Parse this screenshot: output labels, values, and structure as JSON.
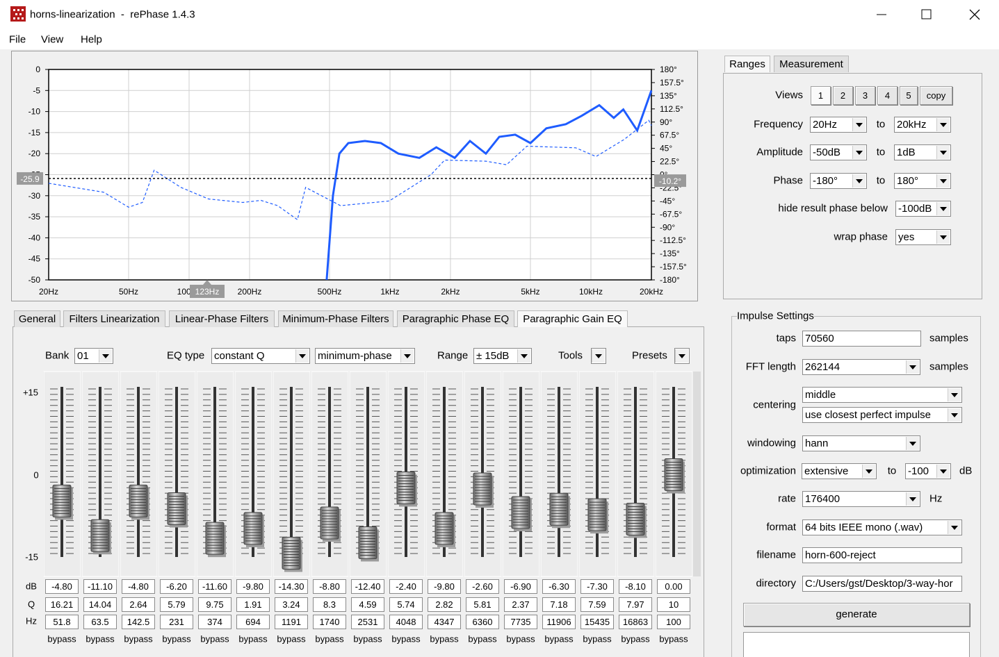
{
  "window": {
    "title": "horns-linearization  -  rePhase 1.4.3"
  },
  "menu": [
    "File",
    "View",
    "Help"
  ],
  "plot": {
    "xscale": "log",
    "xlim": [
      20,
      20000
    ],
    "xticks": [
      {
        "value": 20,
        "label": "20Hz"
      },
      {
        "value": 50,
        "label": "50Hz"
      },
      {
        "value": 100,
        "label": "100Hz"
      },
      {
        "value": 200,
        "label": "200Hz"
      },
      {
        "value": 500,
        "label": "500Hz"
      },
      {
        "value": 1000,
        "label": "1kHz"
      },
      {
        "value": 2000,
        "label": "2kHz"
      },
      {
        "value": 5000,
        "label": "5kHz"
      },
      {
        "value": 10000,
        "label": "10kHz"
      },
      {
        "value": 20000,
        "label": "20kHz"
      }
    ],
    "ylim": [
      -50,
      0
    ],
    "yticks": [
      0,
      -5,
      -10,
      -15,
      -20,
      -25,
      -30,
      -35,
      -40,
      -45,
      -50
    ],
    "y2lim": [
      -180,
      180
    ],
    "y2ticks": [
      {
        "value": 180,
        "label": "180°"
      },
      {
        "value": 157.5,
        "label": "157.5°"
      },
      {
        "value": 135,
        "label": "135°"
      },
      {
        "value": 112.5,
        "label": "112.5°"
      },
      {
        "value": 90,
        "label": "90°"
      },
      {
        "value": 67.5,
        "label": "67.5°"
      },
      {
        "value": 45,
        "label": "45°"
      },
      {
        "value": 22.5,
        "label": "22.5°"
      },
      {
        "value": 0,
        "label": "0°"
      },
      {
        "value": -22.5,
        "label": "-22.5°"
      },
      {
        "value": -45,
        "label": "-45°"
      },
      {
        "value": -67.5,
        "label": "-67.5°"
      },
      {
        "value": -90,
        "label": "-90°"
      },
      {
        "value": -112.5,
        "label": "-112.5°"
      },
      {
        "value": -135,
        "label": "-135°"
      },
      {
        "value": -157.5,
        "label": "-157.5°"
      },
      {
        "value": -180,
        "label": "-180°"
      }
    ],
    "grid": true,
    "cursor": {
      "amplitude": {
        "value": -25.9,
        "label": "-25.9"
      },
      "phase": {
        "value": -10.2,
        "label": "-10.2°"
      },
      "frequency": {
        "value": 123,
        "label": "123Hz"
      }
    },
    "series": [
      {
        "color": "#1e5cff",
        "style": "solid",
        "x": [
          484,
          520,
          560,
          620,
          750,
          900,
          1100,
          1400,
          1700,
          2100,
          2500,
          3000,
          3500,
          4200,
          5000,
          6000,
          7500,
          9000,
          11000,
          13000,
          14500,
          17000,
          20000
        ],
        "values": [
          -50,
          -30,
          -20,
          -17.5,
          -17,
          -17.5,
          -20,
          -21,
          -18.5,
          -21,
          -17,
          -20,
          -16,
          -15.5,
          -17.5,
          -14,
          -13,
          -11,
          -8.5,
          -11.5,
          -9.5,
          -14.5,
          -5
        ]
      },
      {
        "color": "#1e5cff",
        "style": "dashed",
        "axis": "y2",
        "x": [
          20,
          37.6,
          50,
          58.6,
          67,
          91,
          125,
          185,
          228,
          276,
          346,
          380,
          567,
          990,
          1600,
          1870,
          3000,
          3800,
          4800,
          8400,
          10600,
          12500,
          14600,
          19400,
          20000
        ],
        "values": [
          -14.7,
          -30,
          -55.7,
          -47.5,
          7.6,
          -21.7,
          -41.6,
          -47.5,
          -44,
          -53,
          -77,
          -21.7,
          -53,
          -45,
          0,
          25,
          23,
          17,
          48.7,
          46,
          31,
          46,
          60,
          93,
          84
        ]
      }
    ]
  },
  "ranges": {
    "tabs": [
      "Ranges",
      "Measurement"
    ],
    "views": {
      "label": "Views",
      "buttons": [
        "1",
        "2",
        "3",
        "4",
        "5",
        "copy"
      ]
    },
    "rows": [
      {
        "label": "Frequency",
        "from": "20Hz",
        "to_label": "to",
        "to": "20kHz"
      },
      {
        "label": "Amplitude",
        "from": "-50dB",
        "to_label": "to",
        "to": "1dB"
      },
      {
        "label": "Phase",
        "from": "-180°",
        "to_label": "to",
        "to": "180°"
      }
    ],
    "hide": {
      "label": "hide result phase below",
      "value": "-100dB"
    },
    "wrap": {
      "label": "wrap phase",
      "value": "yes"
    }
  },
  "eq": {
    "tabs": [
      "General",
      "Filters Linearization",
      "Linear-Phase Filters",
      "Minimum-Phase Filters",
      "Paragraphic Phase EQ",
      "Paragraphic Gain EQ"
    ],
    "bank": {
      "label": "Bank",
      "value": "01"
    },
    "eq_type": {
      "label": "EQ type",
      "value": "constant Q",
      "mode": "minimum-phase"
    },
    "range": {
      "label": "Range",
      "value": "± 15dB"
    },
    "tools": "Tools",
    "presets": "Presets",
    "scale": [
      {
        "value": 15,
        "label": "+15"
      },
      0,
      -15
    ],
    "row_labels": [
      "dB",
      "Q",
      "Hz"
    ],
    "db": [
      {
        "value": -4.8,
        "label": "-4.80"
      },
      {
        "value": -11.1,
        "label": "-11.10"
      },
      {
        "value": -4.8,
        "label": "-4.80"
      },
      {
        "value": -6.2,
        "label": "-6.20"
      },
      {
        "value": -11.6,
        "label": "-11.60"
      },
      {
        "value": -9.8,
        "label": "-9.80"
      },
      {
        "value": -14.3,
        "label": "-14.30"
      },
      {
        "value": -8.8,
        "label": "-8.80"
      },
      {
        "value": -12.4,
        "label": "-12.40"
      },
      {
        "value": -2.4,
        "label": "-2.40"
      },
      {
        "value": -9.8,
        "label": "-9.80"
      },
      {
        "value": -2.6,
        "label": "-2.60"
      },
      {
        "value": -6.9,
        "label": "-6.90"
      },
      {
        "value": -6.3,
        "label": "-6.30"
      },
      {
        "value": -7.3,
        "label": "-7.30"
      },
      {
        "value": -8.1,
        "label": "-8.10"
      },
      {
        "value": 0,
        "label": "0.00"
      }
    ],
    "q": [
      "16.21",
      "14.04",
      "2.64",
      "5.79",
      "9.75",
      "1.91",
      "3.24",
      "8.3",
      "4.59",
      "5.74",
      "2.82",
      "5.81",
      "2.37",
      "7.18",
      "7.59",
      "7.97",
      "10"
    ],
    "hz": [
      "51.8",
      "63.5",
      "142.5",
      "231",
      "374",
      "694",
      "1191",
      "1740",
      "2531",
      "4048",
      "4347",
      "6360",
      "7735",
      "11906",
      "15435",
      "16863",
      "100"
    ],
    "bypass": [
      "bypass",
      "bypass",
      "bypass",
      "bypass",
      "bypass",
      "bypass",
      "bypass",
      "bypass",
      "bypass",
      "bypass",
      "bypass",
      "bypass",
      "bypass",
      "bypass",
      "bypass",
      "bypass",
      "bypass"
    ]
  },
  "impulse": {
    "title": "Impulse Settings",
    "taps": {
      "label": "taps",
      "value": "70560",
      "unit": "samples"
    },
    "fft": {
      "label": "FFT length",
      "value": "262144",
      "unit": "samples"
    },
    "centering": {
      "label": "centering",
      "value": "middle",
      "option": "use closest perfect impulse"
    },
    "windowing": {
      "label": "windowing",
      "value": "hann"
    },
    "optimization": {
      "label": "optimization",
      "value": "extensive",
      "to_label": "to",
      "to": "-100",
      "unit": "dB"
    },
    "rate": {
      "label": "rate",
      "value": "176400",
      "unit": "Hz"
    },
    "format": {
      "label": "format",
      "value": "64 bits IEEE mono (.wav)"
    },
    "filename": {
      "label": "filename",
      "value": "horn-600-reject"
    },
    "directory": {
      "label": "directory",
      "value": "C:/Users/gst/Desktop/3-way-hor"
    },
    "generate": "generate"
  }
}
